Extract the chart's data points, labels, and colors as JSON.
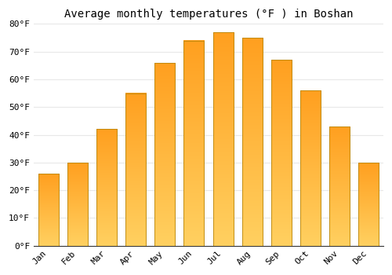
{
  "title": "Average monthly temperatures (°F ) in Boshan",
  "months": [
    "Jan",
    "Feb",
    "Mar",
    "Apr",
    "May",
    "Jun",
    "Jul",
    "Aug",
    "Sep",
    "Oct",
    "Nov",
    "Dec"
  ],
  "values": [
    26,
    30,
    42,
    55,
    66,
    74,
    77,
    75,
    67,
    56,
    43,
    30
  ],
  "bar_color_bottom": "#FFD060",
  "bar_color_top": "#FFA020",
  "bar_edge_color": "#B8860B",
  "ylim": [
    0,
    80
  ],
  "yticks": [
    0,
    10,
    20,
    30,
    40,
    50,
    60,
    70,
    80
  ],
  "ytick_labels": [
    "0°F",
    "10°F",
    "20°F",
    "30°F",
    "40°F",
    "50°F",
    "60°F",
    "70°F",
    "80°F"
  ],
  "background_color": "#ffffff",
  "plot_bg_color": "#ffffff",
  "grid_color": "#e8e8e8",
  "title_fontsize": 10,
  "tick_fontsize": 8,
  "bar_width": 0.7,
  "gradient_steps": 50
}
